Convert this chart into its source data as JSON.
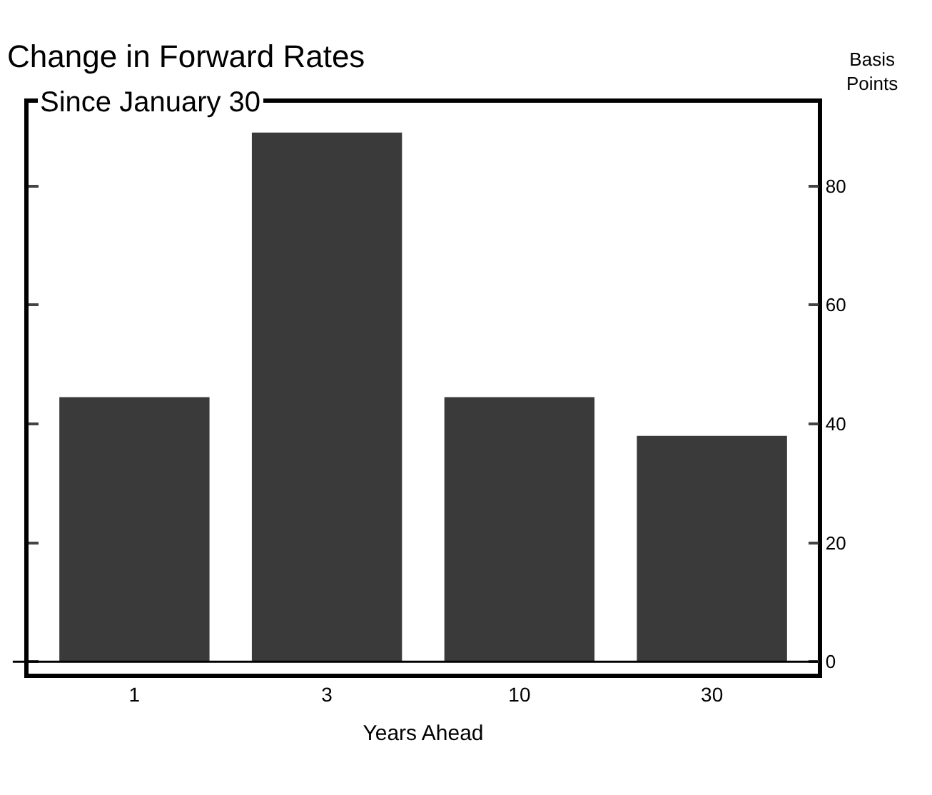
{
  "chart_data": {
    "type": "bar",
    "title": "Change in Forward Rates",
    "subtitle": "Since January 30",
    "xlabel": "Years Ahead",
    "ylabel": "Basis Points",
    "categories": [
      "1",
      "3",
      "10",
      "30"
    ],
    "values": [
      44.5,
      89,
      44.5,
      38
    ],
    "color": "#3a3a3a",
    "ylim": [
      -2,
      94
    ],
    "yticks": [
      0,
      20,
      40,
      60,
      80
    ],
    "ref_lines": [
      {
        "axis": "y",
        "value": 0,
        "color": "#000000"
      }
    ],
    "line_style": "solid"
  }
}
